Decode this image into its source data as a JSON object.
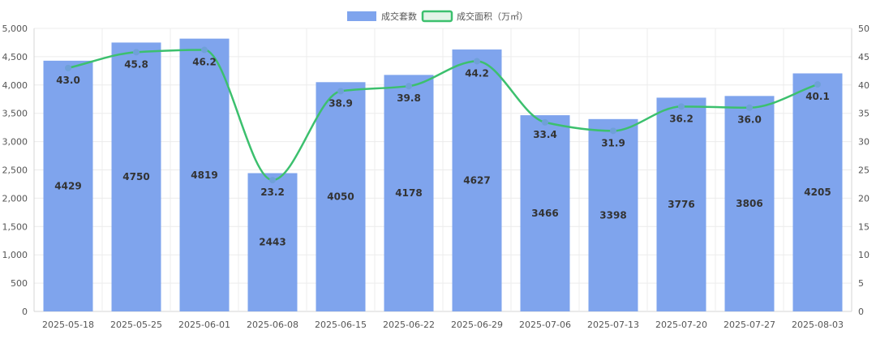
{
  "chart_data": {
    "type": "bar",
    "categories": [
      "2025-05-18",
      "2025-05-25",
      "2025-06-01",
      "2025-06-08",
      "2025-06-15",
      "2025-06-22",
      "2025-06-29",
      "2025-07-06",
      "2025-07-13",
      "2025-07-20",
      "2025-07-27",
      "2025-08-03"
    ],
    "series": [
      {
        "name": "成交套数",
        "type": "bar",
        "axis": "left",
        "color": "#7fa4ed",
        "values": [
          4429,
          4750,
          4819,
          2443,
          4050,
          4178,
          4627,
          3466,
          3398,
          3776,
          3806,
          4205
        ]
      },
      {
        "name": "成交面积（万㎡）",
        "type": "line",
        "axis": "right",
        "color": "#3cc06e",
        "values": [
          43.0,
          45.8,
          46.2,
          23.2,
          38.9,
          39.8,
          44.2,
          33.4,
          31.9,
          36.2,
          36.0,
          40.1
        ]
      }
    ],
    "y_left": {
      "min": 0,
      "max": 5000,
      "step": 500
    },
    "y_right": {
      "min": 0,
      "max": 50,
      "step": 5
    },
    "grid": true,
    "legend": "top-center"
  }
}
